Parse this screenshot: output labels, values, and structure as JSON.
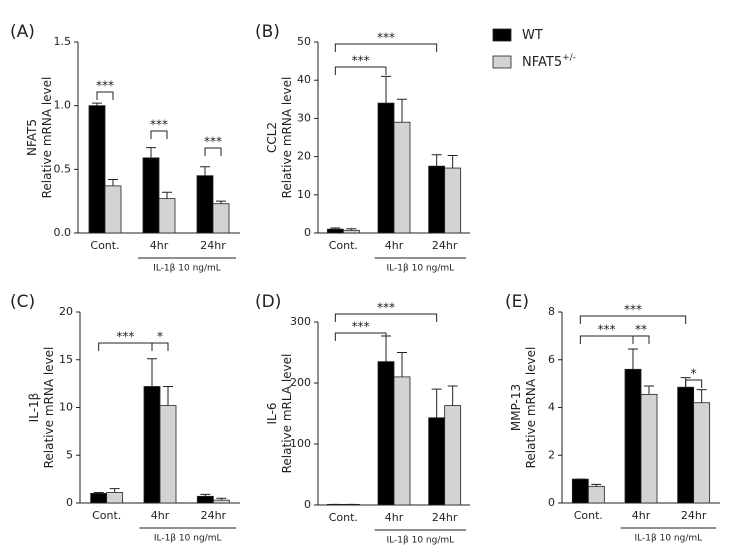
{
  "legend": [
    {
      "name": "WT",
      "color": "#000000"
    },
    {
      "name": "NFAT5",
      "sup": "+/-",
      "color": "#d3d3d3"
    }
  ],
  "chart_data": [
    {
      "type": "bar",
      "panel": "(A)",
      "ylabel_top": "NFAT5",
      "ylabel": "Relative mRNA level",
      "categories": [
        "Cont.",
        "4hr",
        "24hr"
      ],
      "sublabel": "IL-1β 10 ng/mL",
      "ylim": [
        0,
        1.5
      ],
      "yticks": [
        {
          "value": 0,
          "label": "0.0"
        },
        0.5,
        {
          "value": 1,
          "label": "1.0"
        },
        1.5
      ],
      "series": [
        {
          "values": [
            1.0,
            0.59,
            0.45
          ],
          "errors": [
            0.02,
            0.08,
            0.07
          ]
        },
        {
          "values": [
            0.37,
            0.27,
            0.23
          ],
          "errors": [
            0.05,
            0.05,
            0.02
          ]
        }
      ],
      "annotations": [
        "***",
        "***",
        "***"
      ]
    },
    {
      "type": "bar",
      "panel": "(B)",
      "ylabel_top": "CCL2",
      "ylabel": "Relative mRNA level",
      "categories": [
        "Cont.",
        "4hr",
        "24hr"
      ],
      "sublabel": "IL-1β 10 ng/mL",
      "ylim": [
        0,
        50
      ],
      "yticks": [
        0,
        10,
        20,
        30,
        40,
        50
      ],
      "series": [
        {
          "values": [
            1,
            34,
            17.5
          ],
          "errors": [
            0.3,
            7,
            3
          ]
        },
        {
          "values": [
            0.7,
            29,
            17
          ],
          "errors": [
            0.4,
            6,
            3.3
          ]
        }
      ],
      "annotations": [
        "***",
        "***"
      ]
    },
    {
      "type": "bar",
      "panel": "(C)",
      "ylabel_top": "IL-1β",
      "ylabel": "Relative mRNA level",
      "categories": [
        "Cont.",
        "4hr",
        "24hr"
      ],
      "sublabel": "IL-1β 10 ng/mL",
      "ylim": [
        0,
        20
      ],
      "yticks": [
        0,
        5,
        10,
        15,
        20
      ],
      "series": [
        {
          "values": [
            1.0,
            12.2,
            0.7
          ],
          "errors": [
            0.1,
            2.9,
            0.2
          ]
        },
        {
          "values": [
            1.1,
            10.2,
            0.3
          ],
          "errors": [
            0.4,
            2.0,
            0.2
          ]
        }
      ],
      "annotations": [
        "***",
        "*"
      ]
    },
    {
      "type": "bar",
      "panel": "(D)",
      "ylabel_top": "IL-6",
      "ylabel": "Relative mRLA level",
      "categories": [
        "Cont.",
        "4hr",
        "24hr"
      ],
      "sublabel": "IL-1β 10 ng/mL",
      "ylim": [
        0,
        300
      ],
      "yticks": [
        0,
        100,
        200,
        300
      ],
      "series": [
        {
          "values": [
            1,
            235,
            143
          ],
          "errors": [
            0,
            42,
            47
          ]
        },
        {
          "values": [
            1,
            210,
            163
          ],
          "errors": [
            0,
            40,
            32
          ]
        }
      ],
      "annotations": [
        "***",
        "***"
      ]
    },
    {
      "type": "bar",
      "panel": "(E)",
      "ylabel_top": "MMP-13",
      "ylabel": "Relative mRNA level",
      "categories": [
        "Cont.",
        "4hr",
        "24hr"
      ],
      "sublabel": "IL-1β 10 ng/mL",
      "ylim": [
        0,
        8
      ],
      "yticks": [
        0,
        2,
        4,
        6,
        8
      ],
      "series": [
        {
          "values": [
            1.0,
            5.6,
            4.85
          ],
          "errors": [
            0,
            0.85,
            0.4
          ]
        },
        {
          "values": [
            0.7,
            4.55,
            4.2
          ],
          "errors": [
            0.08,
            0.35,
            0.55
          ]
        }
      ],
      "annotations": [
        "***",
        "**",
        "***",
        "*"
      ]
    }
  ]
}
